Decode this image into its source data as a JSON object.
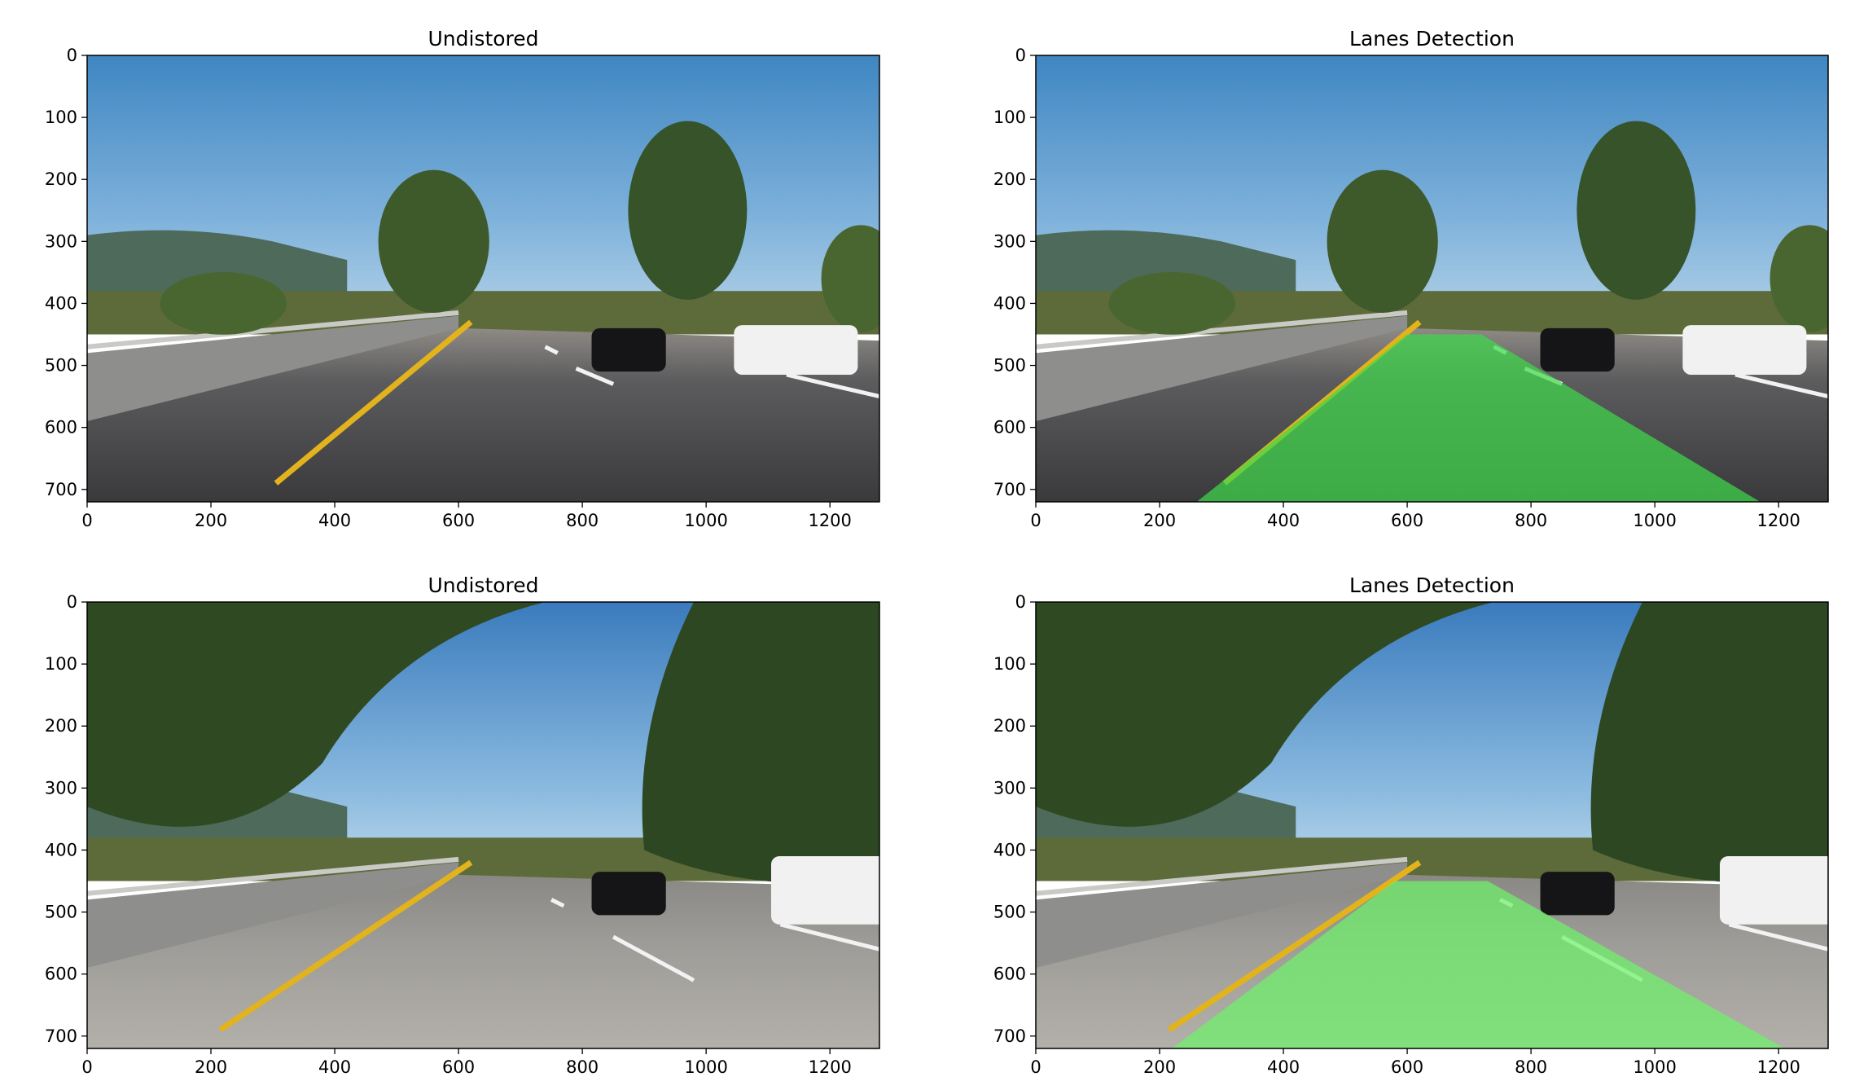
{
  "chart_data": [
    {
      "type": "image",
      "title": "Undistored",
      "xlim": [
        0,
        1280
      ],
      "ylim": [
        720,
        0
      ],
      "xticks": [
        0,
        200,
        400,
        600,
        800,
        1000,
        1200
      ],
      "yticks": [
        0,
        100,
        200,
        300,
        400,
        500,
        600,
        700
      ],
      "scene": "highway with concrete barrier, yellow lane line, trees, two cars (black and white)",
      "lane_overlay": false
    },
    {
      "type": "image",
      "title": "Lanes Detection",
      "xlim": [
        0,
        1280
      ],
      "ylim": [
        720,
        0
      ],
      "xticks": [
        0,
        200,
        400,
        600,
        800,
        1000,
        1200
      ],
      "yticks": [
        0,
        100,
        200,
        300,
        400,
        500,
        600,
        700
      ],
      "scene": "same highway frame with detected lane area",
      "lane_overlay": true,
      "lane_polygon": [
        [
          260,
          720
        ],
        [
          600,
          450
        ],
        [
          720,
          450
        ],
        [
          1170,
          720
        ]
      ],
      "overlay_color": "#3fd84a"
    },
    {
      "type": "image",
      "title": "Undistored",
      "xlim": [
        0,
        1280
      ],
      "ylim": [
        720,
        0
      ],
      "xticks": [
        0,
        200,
        400,
        600,
        800,
        1000,
        1200
      ],
      "yticks": [
        0,
        100,
        200,
        300,
        400,
        500,
        600,
        700
      ],
      "scene": "highway under overhanging trees, yellow lane line, two cars (black and white)",
      "lane_overlay": false
    },
    {
      "type": "image",
      "title": "Lanes Detection",
      "xlim": [
        0,
        1280
      ],
      "ylim": [
        720,
        0
      ],
      "xticks": [
        0,
        200,
        400,
        600,
        800,
        1000,
        1200
      ],
      "yticks": [
        0,
        100,
        200,
        300,
        400,
        500,
        600,
        700
      ],
      "scene": "same highway frame with detected lane area",
      "lane_overlay": true,
      "lane_polygon": [
        [
          220,
          720
        ],
        [
          580,
          450
        ],
        [
          730,
          450
        ],
        [
          1210,
          720
        ]
      ],
      "overlay_color": "#6ef26a"
    }
  ]
}
